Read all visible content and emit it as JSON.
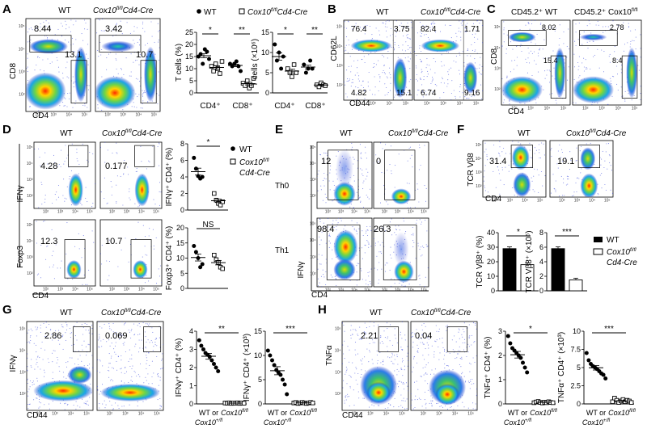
{
  "figure": {
    "labels": {
      "wt": "WT",
      "ko": "Cox10fl/fl Cd4-Cre",
      "ko_main": "Cox10",
      "ko_sup": "fl/fl",
      "ko_tail": "Cd4-Cre",
      "wt_or_het": "WT or",
      "het_main": "Cox10",
      "het_sup": "+/fl",
      "cox_main": "Cox10",
      "cox_sup": "fl/fl",
      "cd452_wt": "CD45.2⁺ WT",
      "cd452_ko_main": "CD45.2⁺ Cox10",
      "cd452_ko_sup": "fl/fl",
      "th0": "Th0",
      "th1": "Th1",
      "ns": "NS",
      "star1": "*",
      "star2": "**",
      "star3": "***"
    },
    "axes": {
      "cd8": "CD8",
      "cd4": "CD4",
      "cd44": "CD44",
      "cd62l": "CD62L",
      "ifng": "IFNγ",
      "foxp3": "Foxp3",
      "tcr": "TCR Vβ8",
      "tnfa": "TNFα"
    },
    "panels": {
      "A": {
        "letter": "A",
        "gate_wt": [
          "8.44",
          "13.1"
        ],
        "gate_ko": [
          "3.42",
          "10.7"
        ],
        "ylabel1": "T cells (%)",
        "ylabel2": "T cells (×10⁶)",
        "groups": [
          "CD4⁺",
          "CD8⁺"
        ],
        "yticks1": [
          "0",
          "5",
          "10",
          "15",
          "20",
          "25"
        ],
        "yticks2": [
          "0",
          "5",
          "10",
          "15"
        ]
      },
      "B": {
        "letter": "B",
        "wt": [
          "76.4",
          "3.75",
          "4.82",
          "15.1"
        ],
        "ko": [
          "82.4",
          "1.71",
          "6.74",
          "9.16"
        ]
      },
      "C": {
        "letter": "C",
        "wt": [
          "8.02",
          "15.4"
        ],
        "ko": [
          "2.78",
          "8.4"
        ]
      },
      "D": {
        "letter": "D",
        "ifng": [
          "4.28",
          "0.177"
        ],
        "foxp3": [
          "12.3",
          "10.7"
        ],
        "ylabel1": "IFNγ⁺ CD4⁺ (%)",
        "ylabel2": "Foxp3⁺ CD4⁺ (%)",
        "yticks1": [
          "0",
          "2",
          "4",
          "6",
          "8"
        ],
        "yticks2": [
          "0",
          "5",
          "10",
          "15",
          "20"
        ]
      },
      "E": {
        "letter": "E",
        "th0": [
          "12",
          "0"
        ],
        "th1": [
          "98.4",
          "26.3"
        ]
      },
      "F": {
        "letter": "F",
        "gate": [
          "31.4",
          "19.1"
        ],
        "ylabel1": "TCR Vβ8⁺ (%)",
        "ylabel2": "TCR Vβ8⁺ (×10⁶)",
        "yticks1": [
          "0",
          "10",
          "20",
          "30",
          "40"
        ],
        "yticks2": [
          "0",
          "2",
          "4",
          "6",
          "8"
        ]
      },
      "G": {
        "letter": "G",
        "gate": [
          "2.86",
          "0.069"
        ],
        "ylabel1": "IFNγ⁺ CD4⁺ (%)",
        "ylabel2": "IFNγ⁺ CD4⁺ (×10³)",
        "yticks1": [
          "0",
          "1",
          "2",
          "3",
          "4"
        ],
        "yticks2": [
          "0",
          "5",
          "10",
          "15"
        ]
      },
      "H": {
        "letter": "H",
        "gate": [
          "2.21",
          "0.04"
        ],
        "ylabel1": "TNFα⁺ CD4⁺ (%)",
        "ylabel2": "TNFα⁺ CD4⁺ (×10³)",
        "yticks1": [
          "0",
          "1",
          "2",
          "3"
        ],
        "yticks2": [
          "0",
          "2.5",
          "5",
          "7.5",
          "10"
        ]
      }
    },
    "chart_data": [
      {
        "type": "scatter",
        "panel": "A-1",
        "ylabel": "T cells (%)",
        "ylim": [
          0,
          25
        ],
        "categories": [
          "CD4⁺",
          "CD8⁺"
        ],
        "series": [
          {
            "name": "WT",
            "values": [
              [
                15,
                16,
                12,
                18,
                17,
                14
              ],
              [
                12,
                11,
                12,
                13,
                11,
                9
              ]
            ]
          },
          {
            "name": "Cox10fl/fl Cd4-Cre",
            "values": [
              [
                11,
                9,
                12,
                10,
                8,
                13
              ],
              [
                4,
                3,
                5,
                2,
                3,
                6
              ]
            ]
          }
        ]
      },
      {
        "type": "scatter",
        "panel": "A-2",
        "ylabel": "T cells (×10⁶)",
        "ylim": [
          0,
          15
        ],
        "categories": [
          "CD4⁺",
          "CD8⁺"
        ],
        "series": [
          {
            "name": "WT",
            "values": [
              [
                12,
                8,
                10,
                6,
                9
              ],
              [
                7,
                5,
                6,
                8,
                6
              ]
            ]
          },
          {
            "name": "Cox10fl/fl Cd4-Cre",
            "values": [
              [
                6,
                5,
                4,
                7,
                5
              ],
              [
                2,
                1.5,
                2.5,
                2,
                1.8
              ]
            ]
          }
        ]
      },
      {
        "type": "scatter",
        "panel": "D-1",
        "ylabel": "IFNγ⁺ CD4⁺ (%)",
        "ylim": [
          0,
          8
        ],
        "series": [
          {
            "name": "WT",
            "values": [
              6.3,
              5.0,
              4.1,
              3.8,
              4.0
            ]
          },
          {
            "name": "Cox10fl/fl Cd4-Cre",
            "values": [
              2.0,
              1.2,
              0.8,
              0.6,
              1.0
            ]
          }
        ]
      },
      {
        "type": "scatter",
        "panel": "D-2",
        "ylabel": "Foxp3⁺ CD4⁺ (%)",
        "ylim": [
          0,
          20
        ],
        "series": [
          {
            "name": "WT",
            "values": [
              14,
              12,
              10,
              7,
              8
            ]
          },
          {
            "name": "Cox10fl/fl Cd4-Cre",
            "values": [
              11,
              9.5,
              8.5,
              7,
              6.5
            ]
          }
        ]
      },
      {
        "type": "bar",
        "panel": "F-1",
        "ylabel": "TCR Vβ8⁺ (%)",
        "ylim": [
          0,
          40
        ],
        "categories": [
          "WT",
          "Cox10fl/fl Cd4-Cre"
        ],
        "values": [
          29,
          18
        ]
      },
      {
        "type": "bar",
        "panel": "F-2",
        "ylabel": "TCR Vβ8⁺ (×10⁶)",
        "ylim": [
          0,
          8
        ],
        "categories": [
          "WT",
          "Cox10fl/fl Cd4-Cre"
        ],
        "values": [
          5.8,
          1.5
        ]
      },
      {
        "type": "scatter",
        "panel": "G-1",
        "ylabel": "IFNγ⁺ CD4⁺ (%)",
        "ylim": [
          0,
          4
        ],
        "series": [
          {
            "name": "WT or Cox10+/fl",
            "values": [
              3.5,
              3.2,
              3.0,
              2.8,
              2.7,
              2.6,
              2.4,
              2.2,
              2.0,
              1.8
            ]
          },
          {
            "name": "Cox10fl/fl",
            "values": [
              0.05,
              0.04,
              0.06,
              0.03,
              0.05,
              0.04,
              0.06,
              0.03,
              0.05,
              0.04
            ]
          }
        ]
      },
      {
        "type": "scatter",
        "panel": "G-2",
        "ylabel": "IFNγ⁺ CD4⁺ (×10³)",
        "ylim": [
          0,
          15
        ],
        "series": [
          {
            "name": "WT or Cox10+/fl",
            "values": [
              11,
              10,
              9,
              8,
              7,
              6.5,
              6,
              5,
              4,
              2
            ]
          },
          {
            "name": "Cox10fl/fl",
            "values": [
              0.2,
              0.3,
              0.1,
              0.2,
              0.3,
              0.2,
              0.1,
              0.2,
              0.3,
              0.2
            ]
          }
        ]
      },
      {
        "type": "scatter",
        "panel": "H-1",
        "ylabel": "TNFα⁺ CD4⁺ (%)",
        "ylim": [
          0,
          3
        ],
        "series": [
          {
            "name": "WT or Cox10+/fl",
            "values": [
              2.8,
              2.5,
              2.3,
              2.2,
              2.1,
              2.0,
              1.9,
              1.7,
              1.5,
              1.3
            ]
          },
          {
            "name": "Cox10fl/fl",
            "values": [
              0.05,
              0.08,
              0.1,
              0.06,
              0.04,
              0.07,
              0.05,
              0.09,
              0.06,
              0.05
            ]
          }
        ]
      },
      {
        "type": "scatter",
        "panel": "H-2",
        "ylabel": "TNFα⁺ CD4⁺ (×10³)",
        "ylim": [
          0,
          10
        ],
        "series": [
          {
            "name": "WT or Cox10+/fl",
            "values": [
              7,
              6,
              5.5,
              5.2,
              5,
              4.8,
              4.5,
              4.2,
              4,
              3.5
            ]
          },
          {
            "name": "Cox10fl/fl",
            "values": [
              0.3,
              0.8,
              0.5,
              0.2,
              0.4,
              0.6,
              0.3,
              0.5,
              0.4,
              0.2
            ]
          }
        ]
      }
    ]
  }
}
